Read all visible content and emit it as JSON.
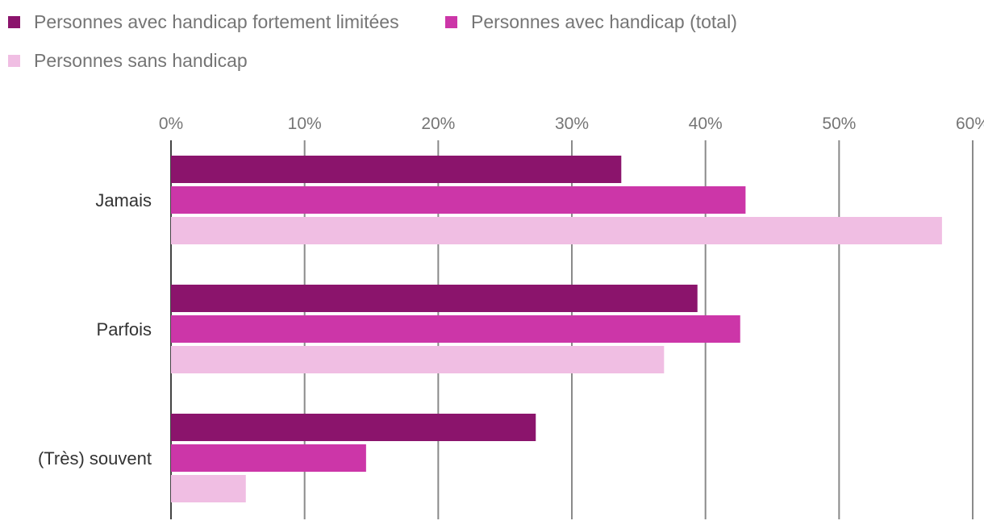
{
  "chart_data": {
    "type": "bar",
    "orientation": "horizontal",
    "categories": [
      "Jamais",
      "Parfois",
      "(Très) souvent"
    ],
    "series": [
      {
        "name": "Personnes avec handicap fortement limitées",
        "color": "#8b146c",
        "values": [
          33.7,
          39.4,
          27.3
        ]
      },
      {
        "name": "Personnes avec handicap (total)",
        "color": "#cc36a8",
        "values": [
          43.0,
          42.6,
          14.6
        ]
      },
      {
        "name": "Personnes sans handicap",
        "color": "#f0bee3",
        "values": [
          57.7,
          36.9,
          5.6
        ]
      }
    ],
    "xlim": [
      0,
      60
    ],
    "xticks": [
      0,
      10,
      20,
      30,
      40,
      50,
      60
    ],
    "tick_labels": [
      "0%",
      "10%",
      "20%",
      "30%",
      "40%",
      "50%",
      "60%"
    ],
    "grid": true,
    "legend_position": "top-left"
  }
}
